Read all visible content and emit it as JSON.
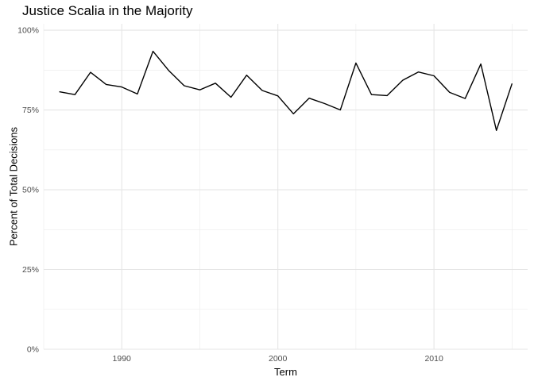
{
  "chart_data": {
    "type": "line",
    "title": "Justice Scalia in the Majority",
    "xlabel": "Term",
    "ylabel": "Percent of Total Decisions",
    "xlim": [
      1985,
      2016
    ],
    "ylim": [
      0,
      1.02
    ],
    "x_ticks": [
      1990,
      2000,
      2010
    ],
    "x_tick_labels": [
      "1990",
      "2000",
      "2010"
    ],
    "y_ticks": [
      0,
      0.25,
      0.5,
      0.75,
      1.0
    ],
    "y_tick_labels": [
      "0%",
      "25%",
      "50%",
      "75%",
      "100%"
    ],
    "grid": true,
    "series": [
      {
        "line_color": "#000000",
        "x": [
          1986,
          1987,
          1988,
          1989,
          1990,
          1991,
          1992,
          1993,
          1994,
          1995,
          1996,
          1997,
          1998,
          1999,
          2000,
          2001,
          2002,
          2003,
          2004,
          2005,
          2006,
          2007,
          2008,
          2009,
          2010,
          2011,
          2012,
          2013,
          2014,
          2015
        ],
        "y": [
          0.807,
          0.798,
          0.868,
          0.83,
          0.822,
          0.8,
          0.934,
          0.874,
          0.826,
          0.813,
          0.834,
          0.79,
          0.859,
          0.811,
          0.794,
          0.738,
          0.787,
          0.77,
          0.75,
          0.897,
          0.798,
          0.795,
          0.843,
          0.869,
          0.857,
          0.805,
          0.786,
          0.894,
          0.686,
          0.833
        ]
      }
    ]
  }
}
